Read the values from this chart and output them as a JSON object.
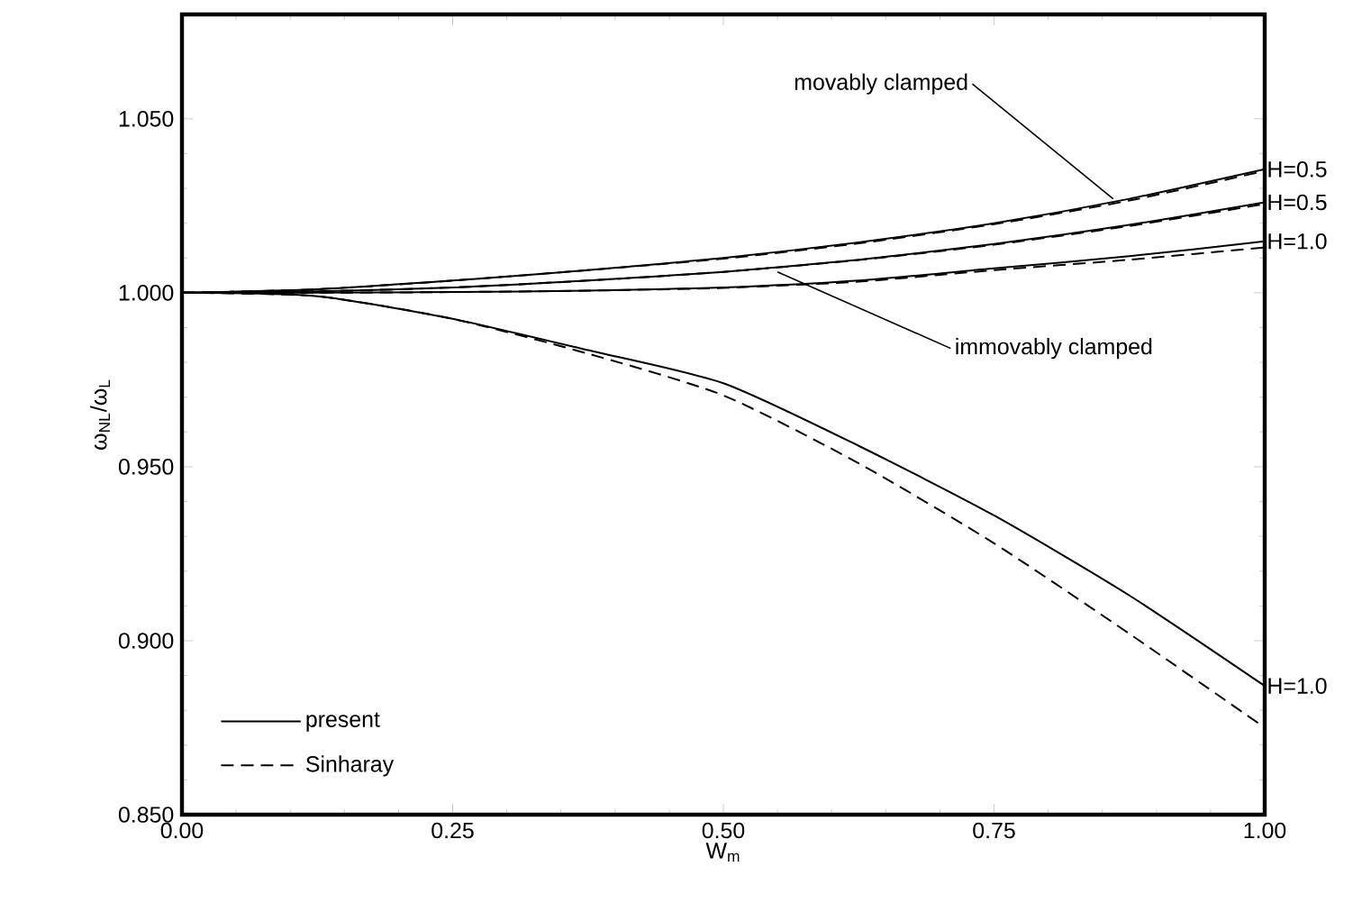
{
  "chart_data": {
    "type": "line",
    "xlabel": "W$_{m}$",
    "ylabel": "ω$_{NL}$/ω$_{L}$",
    "xlim": [
      0,
      1
    ],
    "ylim": [
      0.85,
      1.08
    ],
    "xticks": [
      {
        "value": 0,
        "label": "0.00"
      },
      {
        "value": 0.25,
        "label": "0.25"
      },
      {
        "value": 0.5,
        "label": "0.50"
      },
      {
        "value": 0.75,
        "label": "0.75"
      },
      {
        "value": 1,
        "label": "1.00"
      }
    ],
    "yticks": [
      {
        "value": 0.85,
        "label": "0.850"
      },
      {
        "value": 0.9,
        "label": "0.900"
      },
      {
        "value": 0.95,
        "label": "0.950"
      },
      {
        "value": 1.0,
        "label": "1.000"
      },
      {
        "value": 1.05,
        "label": "1.050"
      }
    ],
    "grid": false,
    "legend": "bottom left",
    "marker": "none",
    "x": [
      0,
      0.125,
      0.25,
      0.375,
      0.5,
      0.625,
      0.75,
      0.875,
      1.0
    ],
    "series": [
      {
        "name": "present",
        "color": "#000000",
        "line_style": "solid",
        "values": [
          1.0,
          1.001,
          1.0035,
          1.0065,
          1.01,
          1.0145,
          1.02,
          1.027,
          1.0355
        ]
      },
      {
        "color": "#000000",
        "line_style": "dashed",
        "values": [
          1.0,
          1.001,
          1.0035,
          1.0065,
          1.0098,
          1.0142,
          1.0197,
          1.0265,
          1.035
        ]
      },
      {
        "color": "#000000",
        "line_style": "solid",
        "values": [
          1.0,
          1.0004,
          1.0015,
          1.0035,
          1.006,
          1.0095,
          1.014,
          1.0195,
          1.026
        ]
      },
      {
        "color": "#000000",
        "line_style": "dashed",
        "values": [
          1.0,
          1.0004,
          1.0015,
          1.0035,
          1.006,
          1.0094,
          1.0138,
          1.0192,
          1.0255
        ]
      },
      {
        "color": "#000000",
        "line_style": "solid",
        "values": [
          1.0,
          1.0,
          1.0002,
          1.0006,
          1.0015,
          1.0035,
          1.007,
          1.0105,
          1.0148
        ]
      },
      {
        "color": "#000000",
        "line_style": "dashed",
        "values": [
          1.0,
          1.0,
          1.0002,
          1.0006,
          1.0014,
          1.0032,
          1.0065,
          1.0095,
          1.013
        ]
      },
      {
        "color": "#000000",
        "line_style": "solid",
        "values": [
          1.0,
          0.999,
          0.9925,
          0.9835,
          0.974,
          0.956,
          0.936,
          0.913,
          0.887
        ]
      },
      {
        "name": "Sinharay",
        "color": "#000000",
        "line_style": "dashed",
        "values": [
          1.0,
          0.999,
          0.9925,
          0.9825,
          0.9705,
          0.951,
          0.928,
          0.902,
          0.875
        ]
      }
    ],
    "annotations": [
      {
        "text": "movably clamped",
        "x": 0.86,
        "y": 1.027
      },
      {
        "text": "immovably clamped",
        "x": 0.55,
        "y": 1.006
      },
      {
        "text": "H=0.5",
        "x": 1.0,
        "y": 1.0355
      },
      {
        "text": "H=0.5",
        "x": 1.0,
        "y": 1.026
      },
      {
        "text": "H=1.0",
        "x": 1.0,
        "y": 1.0148
      },
      {
        "text": "H=1.0",
        "x": 1.0,
        "y": 0.887
      }
    ]
  }
}
